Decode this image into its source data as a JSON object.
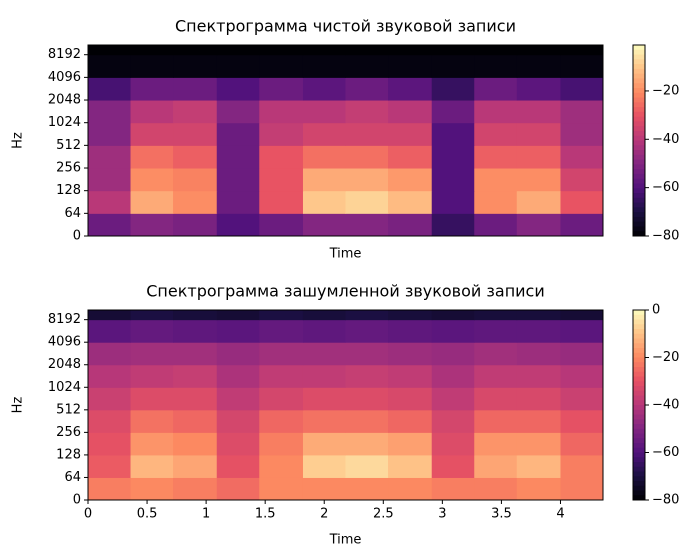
{
  "chart_data": [
    {
      "type": "heatmap",
      "title": "Спектрограмма чистой звуковой записи",
      "xlabel": "Time",
      "ylabel": "Hz",
      "colormap": "magma",
      "xlim": [
        0,
        4.36
      ],
      "ylim": [
        0,
        11025
      ],
      "yticks": [
        0,
        64,
        128,
        256,
        512,
        1024,
        2048,
        4096,
        8192
      ],
      "xbins": [
        0,
        0.36,
        0.72,
        1.09,
        1.45,
        1.82,
        2.18,
        2.54,
        2.91,
        3.27,
        3.63,
        4.0,
        4.36
      ],
      "ybins": [
        0,
        64,
        128,
        256,
        512,
        1024,
        2048,
        4096,
        8192,
        11025
      ],
      "values": [
        [
          -55,
          -50,
          -52,
          -60,
          -55,
          -50,
          -50,
          -52,
          -65,
          -55,
          -50,
          -55
        ],
        [
          -40,
          -15,
          -20,
          -55,
          -30,
          -10,
          -8,
          -12,
          -60,
          -20,
          -15,
          -30
        ],
        [
          -45,
          -20,
          -22,
          -55,
          -30,
          -15,
          -15,
          -18,
          -60,
          -20,
          -20,
          -35
        ],
        [
          -45,
          -25,
          -28,
          -55,
          -30,
          -25,
          -25,
          -28,
          -60,
          -28,
          -28,
          -40
        ],
        [
          -50,
          -35,
          -35,
          -55,
          -38,
          -35,
          -35,
          -35,
          -60,
          -35,
          -35,
          -45
        ],
        [
          -50,
          -40,
          -38,
          -50,
          -40,
          -40,
          -38,
          -40,
          -55,
          -40,
          -40,
          -45
        ],
        [
          -62,
          -55,
          -55,
          -60,
          -55,
          -58,
          -55,
          -58,
          -65,
          -55,
          -58,
          -62
        ],
        [
          -78,
          -78,
          -78,
          -78,
          -78,
          -78,
          -78,
          -78,
          -78,
          -78,
          -78,
          -78
        ],
        [
          -80,
          -80,
          -80,
          -80,
          -80,
          -80,
          -80,
          -80,
          -80,
          -80,
          -80,
          -80
        ]
      ],
      "clim": [
        -80,
        -1
      ],
      "cticks": [
        {
          "value": -20,
          "label": "−20"
        },
        {
          "value": -40,
          "label": "−40"
        },
        {
          "value": -60,
          "label": "−60"
        },
        {
          "value": -80,
          "label": "−80"
        }
      ]
    },
    {
      "type": "heatmap",
      "title": "Спектрограмма зашумленной звуковой записи",
      "xlabel": "Time",
      "ylabel": "Hz",
      "colormap": "magma",
      "xlim": [
        0,
        4.36
      ],
      "ylim": [
        0,
        11025
      ],
      "xticks": [
        0,
        0.5,
        1,
        1.5,
        2,
        2.5,
        3,
        3.5,
        4
      ],
      "yticks": [
        0,
        64,
        128,
        256,
        512,
        1024,
        2048,
        4096,
        8192
      ],
      "xbins": [
        0,
        0.36,
        0.72,
        1.09,
        1.45,
        1.82,
        2.18,
        2.54,
        2.91,
        3.27,
        3.63,
        4.0,
        4.36
      ],
      "ybins": [
        0,
        64,
        128,
        256,
        512,
        1024,
        2048,
        4096,
        8192,
        11025
      ],
      "values": [
        [
          -22,
          -20,
          -22,
          -25,
          -20,
          -20,
          -20,
          -20,
          -22,
          -22,
          -20,
          -22
        ],
        [
          -28,
          -12,
          -15,
          -30,
          -20,
          -8,
          -6,
          -10,
          -30,
          -15,
          -12,
          -22
        ],
        [
          -30,
          -18,
          -20,
          -32,
          -22,
          -14,
          -14,
          -16,
          -32,
          -18,
          -18,
          -26
        ],
        [
          -32,
          -24,
          -26,
          -34,
          -26,
          -24,
          -24,
          -26,
          -34,
          -26,
          -26,
          -30
        ],
        [
          -36,
          -32,
          -32,
          -38,
          -34,
          -32,
          -32,
          -33,
          -38,
          -33,
          -33,
          -36
        ],
        [
          -40,
          -38,
          -37,
          -42,
          -38,
          -38,
          -37,
          -38,
          -42,
          -38,
          -38,
          -40
        ],
        [
          -45,
          -44,
          -44,
          -46,
          -44,
          -44,
          -44,
          -45,
          -46,
          -44,
          -45,
          -46
        ],
        [
          -58,
          -56,
          -57,
          -58,
          -56,
          -57,
          -56,
          -57,
          -58,
          -57,
          -57,
          -58
        ],
        [
          -72,
          -70,
          -71,
          -72,
          -70,
          -71,
          -70,
          -71,
          -72,
          -71,
          -71,
          -72
        ]
      ],
      "clim": [
        -80,
        0
      ],
      "cticks": [
        {
          "value": 0,
          "label": "0"
        },
        {
          "value": -20,
          "label": "−20"
        },
        {
          "value": -40,
          "label": "−40"
        },
        {
          "value": -60,
          "label": "−60"
        },
        {
          "value": -80,
          "label": "−80"
        }
      ]
    }
  ]
}
